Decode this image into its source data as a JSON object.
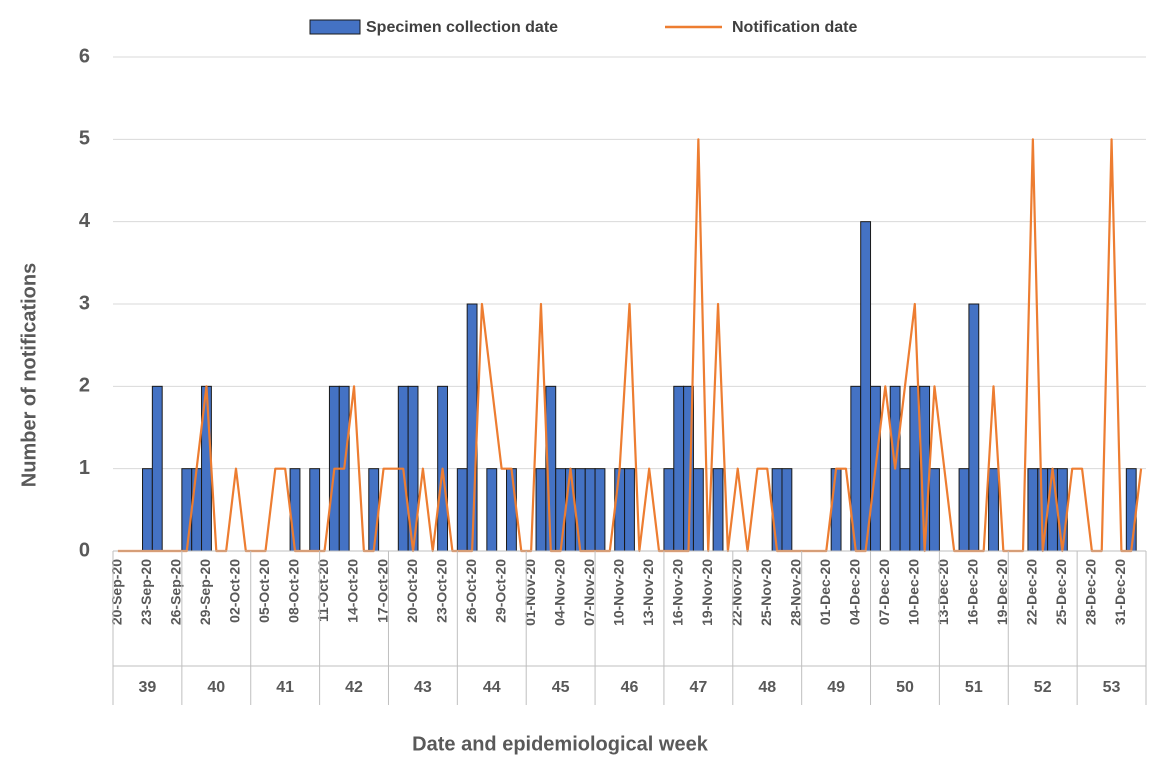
{
  "chart_data": {
    "type": "bar_line",
    "x_label": "Date and epidemiological week",
    "y_label": "Number of notifications",
    "categories": [
      "20-Sep-20",
      null,
      null,
      "23-Sep-20",
      null,
      null,
      "26-Sep-20",
      null,
      null,
      "29-Sep-20",
      null,
      null,
      "02-Oct-20",
      null,
      null,
      "05-Oct-20",
      null,
      null,
      "08-Oct-20",
      null,
      null,
      "11-Oct-20",
      null,
      null,
      "14-Oct-20",
      null,
      null,
      "17-Oct-20",
      null,
      null,
      "20-Oct-20",
      null,
      null,
      "23-Oct-20",
      null,
      null,
      "26-Oct-20",
      null,
      null,
      "29-Oct-20",
      null,
      null,
      "01-Nov-20",
      null,
      null,
      "04-Nov-20",
      null,
      null,
      "07-Nov-20",
      null,
      null,
      "10-Nov-20",
      null,
      null,
      "13-Nov-20",
      null,
      null,
      "16-Nov-20",
      null,
      null,
      "19-Nov-20",
      null,
      null,
      "22-Nov-20",
      null,
      null,
      "25-Nov-20",
      null,
      null,
      "28-Nov-20",
      null,
      null,
      "01-Dec-20",
      null,
      null,
      "04-Dec-20",
      null,
      null,
      "07-Dec-20",
      null,
      null,
      "10-Dec-20",
      null,
      null,
      "13-Dec-20",
      null,
      null,
      "16-Dec-20",
      null,
      null,
      "19-Dec-20",
      null,
      null,
      "22-Dec-20",
      null,
      null,
      "25-Dec-20",
      null,
      null,
      "28-Dec-20",
      null,
      null,
      "31-Dec-20",
      null,
      null
    ],
    "weeks": [
      39,
      40,
      41,
      42,
      43,
      44,
      45,
      46,
      47,
      48,
      49,
      50,
      51,
      52,
      53
    ],
    "series": [
      {
        "name": "Specimen collection date",
        "kind": "bar",
        "color": "#4472c4",
        "values": [
          0,
          0,
          0,
          1,
          2,
          0,
          0,
          1,
          1,
          2,
          0,
          0,
          0,
          0,
          0,
          0,
          0,
          0,
          1,
          0,
          1,
          0,
          2,
          2,
          0,
          0,
          1,
          0,
          0,
          2,
          2,
          0,
          0,
          2,
          0,
          1,
          3,
          0,
          1,
          0,
          1,
          0,
          0,
          1,
          2,
          1,
          1,
          1,
          1,
          1,
          0,
          1,
          1,
          0,
          0,
          0,
          1,
          2,
          2,
          1,
          0,
          1,
          0,
          0,
          0,
          0,
          0,
          1,
          1,
          0,
          0,
          0,
          0,
          1,
          0,
          2,
          4,
          2,
          0,
          2,
          1,
          2,
          2,
          1,
          0,
          0,
          1,
          3,
          0,
          1,
          0,
          0,
          0,
          1,
          1,
          1,
          1,
          0,
          0,
          0,
          0,
          0,
          0,
          1,
          0
        ]
      },
      {
        "name": "Notification date",
        "kind": "line",
        "color": "#ed7d31",
        "values": [
          0,
          0,
          0,
          0,
          0,
          0,
          0,
          0,
          1,
          2,
          0,
          0,
          1,
          0,
          0,
          0,
          1,
          1,
          0,
          0,
          0,
          0,
          1,
          1,
          2,
          0,
          0,
          1,
          1,
          1,
          0,
          1,
          0,
          1,
          0,
          0,
          0,
          3,
          2,
          1,
          1,
          0,
          0,
          3,
          0,
          0,
          1,
          0,
          0,
          0,
          0,
          1,
          3,
          0,
          1,
          0,
          0,
          0,
          0,
          5,
          0,
          3,
          0,
          1,
          0,
          1,
          1,
          0,
          0,
          0,
          0,
          0,
          0,
          1,
          1,
          0,
          0,
          1,
          2,
          1,
          2,
          3,
          0,
          2,
          1,
          0,
          0,
          0,
          0,
          2,
          0,
          0,
          0,
          5,
          0,
          1,
          0,
          1,
          1,
          0,
          0,
          5,
          0,
          0,
          1
        ]
      }
    ],
    "ylim": [
      0,
      6
    ],
    "yticks": [
      0,
      1,
      2,
      3,
      4,
      5,
      6
    ],
    "grid": true,
    "legend": "top"
  }
}
